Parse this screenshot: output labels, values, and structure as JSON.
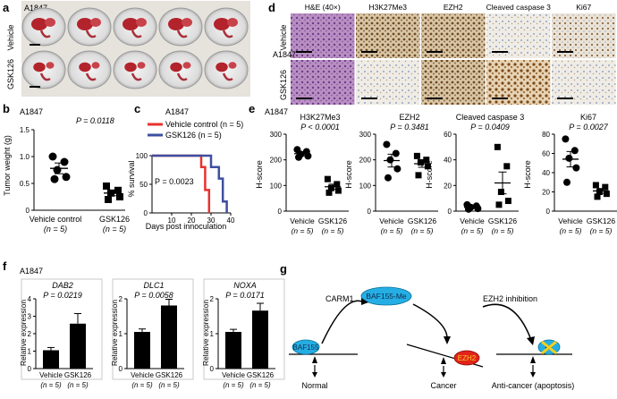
{
  "panel_a": {
    "letter": "a",
    "cell_line": "A1847",
    "rows": [
      "Vehicle",
      "GSK126"
    ]
  },
  "panel_b": {
    "letter": "b",
    "cell_line": "A1847",
    "p_value": "P = 0.0118",
    "ylabel": "Tumor weight (g)",
    "yticks": [
      "0",
      "0.5",
      "1.0",
      "1.5"
    ],
    "groups": [
      {
        "label": "Vehicle control",
        "n": "(n = 5)"
      },
      {
        "label": "GSK126",
        "n": "(n = 5)"
      }
    ]
  },
  "panel_c": {
    "letter": "c",
    "cell_line": "A1847",
    "legend": [
      {
        "label": "Vehicle control (n = 5)",
        "color": "#e8322f"
      },
      {
        "label": "GSK126 (n = 5)",
        "color": "#3d4fa0"
      }
    ],
    "p_value": "P = 0.0023",
    "ylabel": "% survival",
    "yticks": [
      "0",
      "50",
      "100"
    ],
    "xticks": [
      "10",
      "20",
      "30",
      "40"
    ],
    "xlabel": "Days post innoculation"
  },
  "panel_d": {
    "letter": "d",
    "cell_line": "A1847",
    "columns": [
      "H&E (40×)",
      "H3K27Me3",
      "EZH2",
      "Cleaved caspase 3",
      "Ki67"
    ],
    "rows": [
      "Vehicle",
      "GSK126"
    ]
  },
  "panel_e": {
    "letter": "e",
    "cell_line": "A1847",
    "ylabel": "H-score",
    "groups": [
      {
        "label": "Vehicle",
        "n": "(n = 5)"
      },
      {
        "label": "GSK126",
        "n": "(n = 5)"
      }
    ],
    "charts": [
      {
        "title": "H3K27Me3",
        "p": "P < 0.0001",
        "yticks": [
          "0",
          "100",
          "200",
          "300"
        ]
      },
      {
        "title": "EZH2",
        "p": "P = 0.3481",
        "yticks": [
          "0",
          "100",
          "200",
          "300"
        ]
      },
      {
        "title": "Cleaved caspase 3",
        "p": "P = 0.0409",
        "yticks": [
          "0",
          "20",
          "40",
          "60"
        ]
      },
      {
        "title": "Ki67",
        "p": "P = 0.0027",
        "yticks": [
          "0",
          "20",
          "40",
          "60",
          "80"
        ]
      }
    ]
  },
  "panel_f": {
    "letter": "f",
    "cell_line": "A1847",
    "ylabel": "Relative expression",
    "groups": [
      {
        "label": "Vehicle",
        "n": "(n = 5)"
      },
      {
        "label": "GSK126",
        "n": "(n = 5)"
      }
    ],
    "charts": [
      {
        "gene": "DAB2",
        "p": "P = 0.0219",
        "yticks": [
          "0",
          "1",
          "2",
          "3",
          "4"
        ]
      },
      {
        "gene": "DLC1",
        "p": "P = 0.0058",
        "yticks": [
          "0",
          "1",
          "2"
        ]
      },
      {
        "gene": "NOXA",
        "p": "P = 0.0171",
        "yticks": [
          "0",
          "1",
          "2"
        ]
      }
    ]
  },
  "panel_g": {
    "letter": "g",
    "carm1": "CARM1",
    "baf155_me": "BAF155-Me",
    "ezh2_inhibition": "EZH2 inhibition",
    "baf155": "BAF155",
    "ezh2": "EZH2",
    "ezh2_x": "EZ",
    "normal": "Normal",
    "cancer": "Cancer",
    "anticancer": "Anti-cancer (apoptosis)"
  },
  "chart_data": [
    {
      "type": "scatter",
      "panel": "b",
      "categories": [
        "Vehicle control",
        "GSK126"
      ],
      "series": [
        {
          "name": "Vehicle control",
          "values": [
            1.0,
            0.9,
            0.75,
            0.62,
            0.58
          ],
          "mean": 0.78,
          "sem": 0.1
        },
        {
          "name": "GSK126",
          "values": [
            0.45,
            0.37,
            0.32,
            0.25,
            0.2
          ],
          "mean": 0.32,
          "sem": 0.05
        }
      ],
      "title": "A1847",
      "ylabel": "Tumor weight (g)",
      "ylim": [
        0,
        1.5
      ]
    },
    {
      "type": "line",
      "panel": "c",
      "series": [
        {
          "name": "Vehicle control (n = 5)",
          "x": [
            0,
            25,
            25,
            27,
            27,
            29,
            29
          ],
          "y": [
            100,
            100,
            80,
            80,
            40,
            40,
            0
          ]
        },
        {
          "name": "GSK126 (n = 5)",
          "x": [
            0,
            30,
            30,
            34,
            34,
            36,
            36,
            38,
            38
          ],
          "y": [
            100,
            100,
            80,
            80,
            60,
            60,
            20,
            20,
            0
          ]
        }
      ],
      "title": "A1847",
      "xlabel": "Days post innoculation",
      "ylabel": "% survival",
      "xlim": [
        0,
        40
      ],
      "ylim": [
        0,
        100
      ]
    },
    {
      "type": "scatter",
      "panel": "e1",
      "title": "H3K27Me3",
      "ylim": [
        0,
        300
      ],
      "series": [
        {
          "name": "Vehicle",
          "values": [
            240,
            232,
            222,
            215,
            210
          ],
          "mean": 224,
          "sem": 8
        },
        {
          "name": "GSK126",
          "values": [
            125,
            105,
            90,
            80,
            72
          ],
          "mean": 95,
          "sem": 10
        }
      ]
    },
    {
      "type": "scatter",
      "panel": "e2",
      "title": "EZH2",
      "ylim": [
        0,
        300
      ],
      "series": [
        {
          "name": "Vehicle",
          "values": [
            260,
            225,
            200,
            165,
            130
          ],
          "mean": 197,
          "sem": 25
        },
        {
          "name": "GSK126",
          "values": [
            215,
            200,
            190,
            175,
            140
          ],
          "mean": 185,
          "sem": 14
        }
      ]
    },
    {
      "type": "scatter",
      "panel": "e3",
      "title": "Cleaved caspase 3",
      "ylim": [
        0,
        60
      ],
      "series": [
        {
          "name": "Vehicle",
          "values": [
            5,
            4,
            3,
            2,
            1.5
          ],
          "mean": 3,
          "sem": 0.7
        },
        {
          "name": "GSK126",
          "values": [
            50,
            35,
            15,
            8,
            5
          ],
          "mean": 22,
          "sem": 8.5
        }
      ]
    },
    {
      "type": "scatter",
      "panel": "e4",
      "title": "Ki67",
      "ylim": [
        0,
        80
      ],
      "series": [
        {
          "name": "Vehicle",
          "values": [
            75,
            63,
            55,
            45,
            30
          ],
          "mean": 54,
          "sem": 8
        },
        {
          "name": "GSK126",
          "values": [
            27,
            25,
            20,
            18,
            15
          ],
          "mean": 21,
          "sem": 2.5
        }
      ]
    },
    {
      "type": "bar",
      "panel": "f1",
      "title": "DAB2",
      "categories": [
        "Vehicle",
        "GSK126"
      ],
      "values": [
        1.0,
        2.45
      ],
      "errors": [
        0.15,
        0.55
      ],
      "ylim": [
        0,
        4
      ]
    },
    {
      "type": "bar",
      "panel": "f2",
      "title": "DLC1",
      "categories": [
        "Vehicle",
        "GSK126"
      ],
      "values": [
        1.0,
        1.72
      ],
      "errors": [
        0.08,
        0.17
      ],
      "ylim": [
        0,
        2
      ]
    },
    {
      "type": "bar",
      "panel": "f3",
      "title": "NOXA",
      "categories": [
        "Vehicle",
        "GSK126"
      ],
      "values": [
        1.0,
        1.58
      ],
      "errors": [
        0.07,
        0.2
      ],
      "ylim": [
        0,
        2
      ]
    }
  ]
}
